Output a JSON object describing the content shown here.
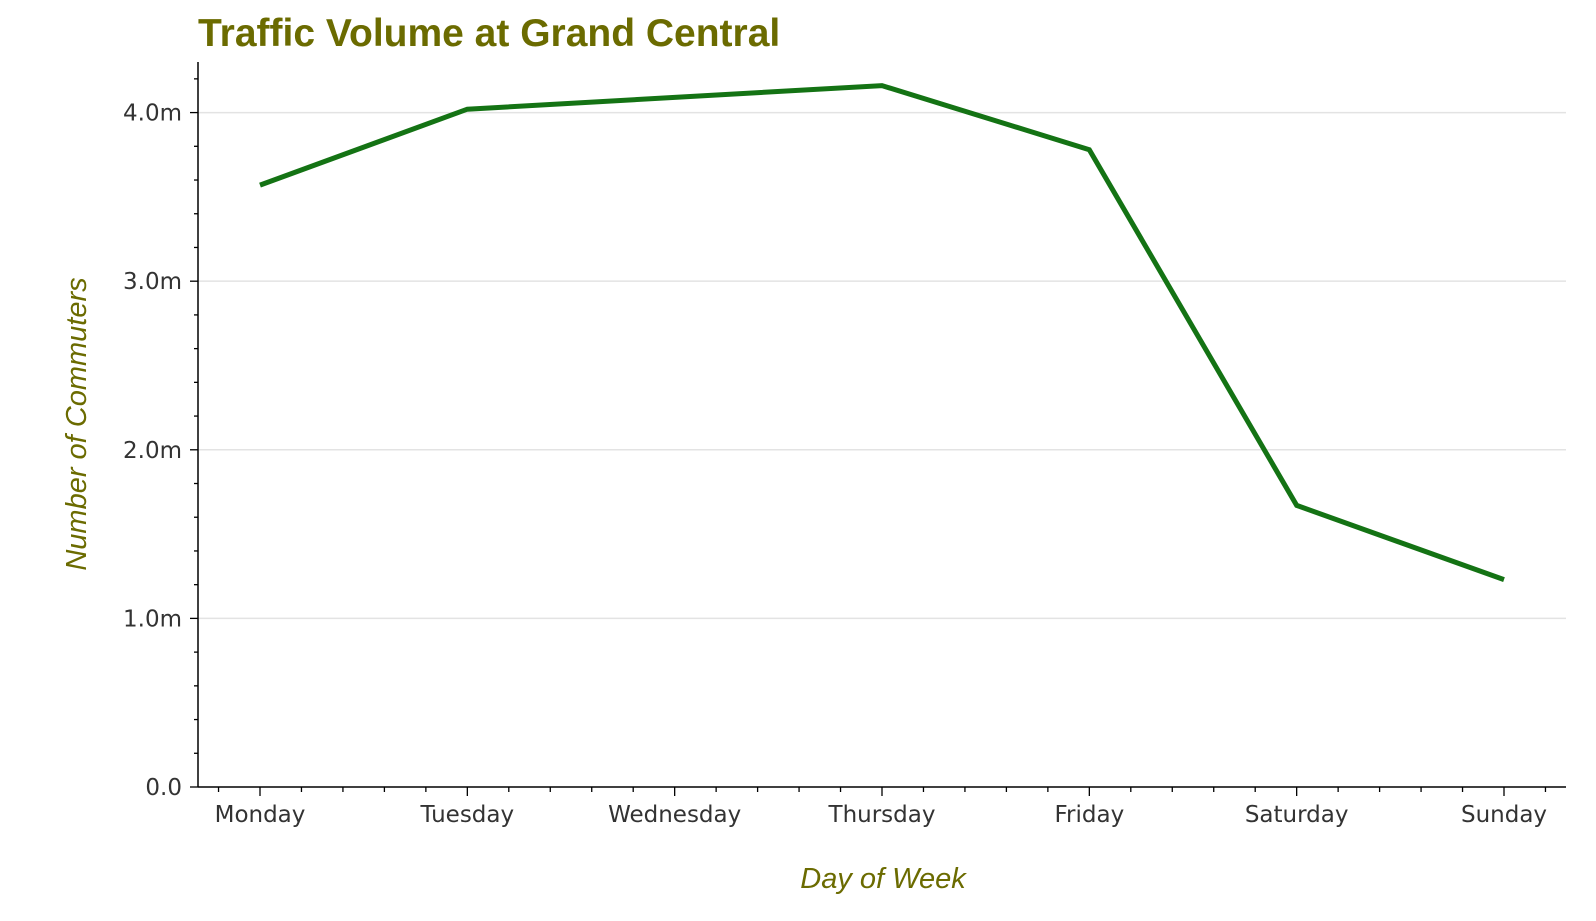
{
  "colors": {
    "title": "#6b6b00",
    "axis_label": "#6b6b00",
    "line": "#147314",
    "grid": "#e3e3e3",
    "axis": "#000000",
    "tick_text": "#333333"
  },
  "chart_data": {
    "type": "line",
    "title": "Traffic Volume at Grand Central",
    "xlabel": "Day of Week",
    "ylabel": "Number of Commuters",
    "categories": [
      "Monday",
      "Tuesday",
      "Wednesday",
      "Thursday",
      "Friday",
      "Saturday",
      "Sunday"
    ],
    "series": [
      {
        "values": [
          3570000,
          4020000,
          4090000,
          4160000,
          3780000,
          1670000,
          1230000
        ]
      }
    ],
    "ylim": [
      0,
      4300000
    ],
    "y_ticks": [
      0,
      1000000,
      2000000,
      3000000,
      4000000
    ],
    "y_tick_labels": [
      "0.0",
      "1.0m",
      "2.0m",
      "3.0m",
      "4.0m"
    ],
    "grid": "horizontal",
    "legend": "none"
  }
}
